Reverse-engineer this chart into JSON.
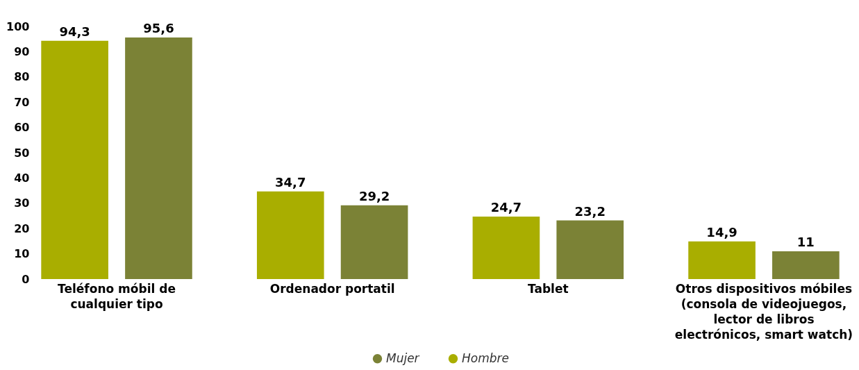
{
  "chart_data": {
    "type": "bar",
    "categories": [
      "Teléfono móbil de cualquier tipo",
      "Ordenador portatil",
      "Tablet",
      "Otros dispositivos móbiles (consola de videojuegos, lector de libros electrónicos, smart watch)"
    ],
    "series": [
      {
        "name": "Hombre",
        "color": "#a9ae00",
        "values": [
          94.3,
          34.7,
          24.7,
          14.9
        ],
        "value_labels": [
          "94,3",
          "34,7",
          "24,7",
          "14,9"
        ]
      },
      {
        "name": "Mujer",
        "color": "#7b8236",
        "values": [
          95.6,
          29.2,
          23.2,
          11
        ],
        "value_labels": [
          "95,6",
          "29,2",
          "23,2",
          "11"
        ]
      }
    ],
    "ylim": [
      0,
      100
    ],
    "yticks": [
      0,
      10,
      20,
      30,
      40,
      50,
      60,
      70,
      80,
      90,
      100
    ],
    "grid": false,
    "legend": "bottom"
  }
}
